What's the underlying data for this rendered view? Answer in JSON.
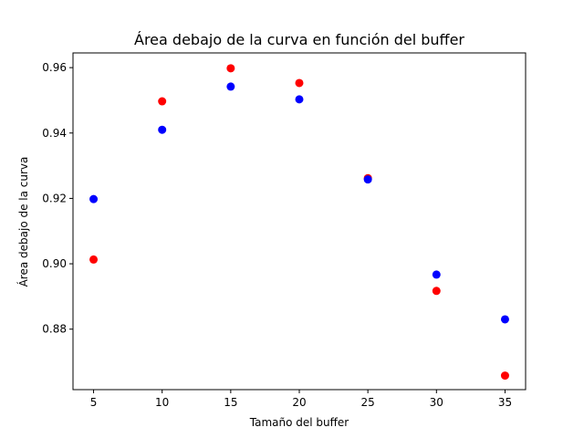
{
  "chart_data": {
    "type": "scatter",
    "title": "Área debajo de la curva en función del buffer",
    "xlabel": "Tamaño del buffer",
    "ylabel": "Área debajo de la curva",
    "x": [
      5,
      10,
      15,
      20,
      25,
      30,
      35
    ],
    "xlim": [
      3.5,
      36.5
    ],
    "ylim": [
      0.8615,
      0.9645
    ],
    "xticks": [
      5,
      10,
      15,
      20,
      25,
      30,
      35
    ],
    "yticks": [
      0.88,
      0.9,
      0.92,
      0.94,
      0.96
    ],
    "ytick_labels": [
      "0.88",
      "0.90",
      "0.92",
      "0.94",
      "0.96"
    ],
    "grid": false,
    "series": [
      {
        "color": "#ff0000",
        "values": [
          0.9013,
          0.9497,
          0.9598,
          0.9553,
          0.9262,
          0.8917,
          0.8658
        ]
      },
      {
        "color": "#0000ff",
        "values": [
          0.9198,
          0.941,
          0.9542,
          0.9503,
          0.9258,
          0.8967,
          0.883
        ]
      }
    ]
  }
}
